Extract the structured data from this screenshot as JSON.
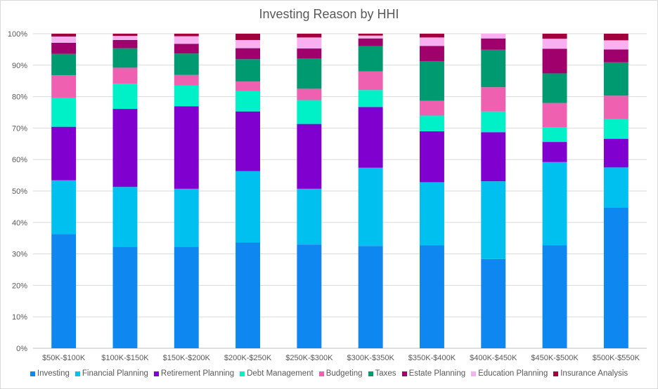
{
  "chart_data": {
    "type": "bar",
    "stacked": true,
    "percent": true,
    "title": "Investing Reason by HHI",
    "xlabel": "",
    "ylabel": "",
    "ylim": [
      0,
      100
    ],
    "yticks": [
      "0%",
      "10%",
      "20%",
      "30%",
      "40%",
      "50%",
      "60%",
      "70%",
      "80%",
      "90%",
      "100%"
    ],
    "grid": true,
    "legend": "bottom",
    "categories": [
      "$50K-$100K",
      "$100K-$150K",
      "$150K-$200K",
      "$200K-$250K",
      "$250K-$300K",
      "$300K-$350K",
      "$350K-$400K",
      "$400K-$450K",
      "$450K-$500K",
      "$500K-$550K"
    ],
    "series": [
      {
        "name": "Investing",
        "color": "#0f87f0",
        "values": [
          36.3,
          32.3,
          32.3,
          33.6,
          33.0,
          32.5,
          32.7,
          28.4,
          32.7,
          44.8
        ]
      },
      {
        "name": "Financial Planning",
        "color": "#00c0f0",
        "values": [
          17.1,
          19.0,
          18.4,
          22.7,
          17.7,
          24.9,
          20.1,
          24.7,
          26.5,
          12.7
        ]
      },
      {
        "name": "Retirement Planning",
        "color": "#8000d0",
        "values": [
          17.0,
          24.8,
          26.2,
          19.0,
          20.6,
          19.3,
          16.2,
          15.6,
          6.4,
          9.1
        ]
      },
      {
        "name": "Debt Management",
        "color": "#00f0c8",
        "values": [
          9.2,
          8.0,
          6.6,
          6.5,
          7.6,
          5.4,
          5.0,
          6.6,
          4.7,
          6.2
        ]
      },
      {
        "name": "Budgeting",
        "color": "#f060b0",
        "values": [
          7.2,
          5.1,
          3.4,
          3.0,
          3.6,
          5.9,
          4.7,
          7.7,
          7.7,
          7.5
        ]
      },
      {
        "name": "Taxes",
        "color": "#009a70",
        "values": [
          6.8,
          6.2,
          6.8,
          7.1,
          9.6,
          8.1,
          12.6,
          11.9,
          9.4,
          10.6
        ]
      },
      {
        "name": "Estate Planning",
        "color": "#a0006c",
        "values": [
          3.5,
          2.6,
          3.1,
          3.5,
          3.2,
          2.4,
          4.8,
          3.6,
          7.8,
          4.1
        ]
      },
      {
        "name": "Education Planning",
        "color": "#f8b0f0",
        "values": [
          2.0,
          1.3,
          2.4,
          2.6,
          3.5,
          0.9,
          2.7,
          1.5,
          3.2,
          2.9
        ]
      },
      {
        "name": "Insurance Analysis",
        "color": "#a0003c",
        "values": [
          0.9,
          0.7,
          0.8,
          2.0,
          1.2,
          0.6,
          1.2,
          0.0,
          1.6,
          2.1
        ]
      }
    ]
  }
}
